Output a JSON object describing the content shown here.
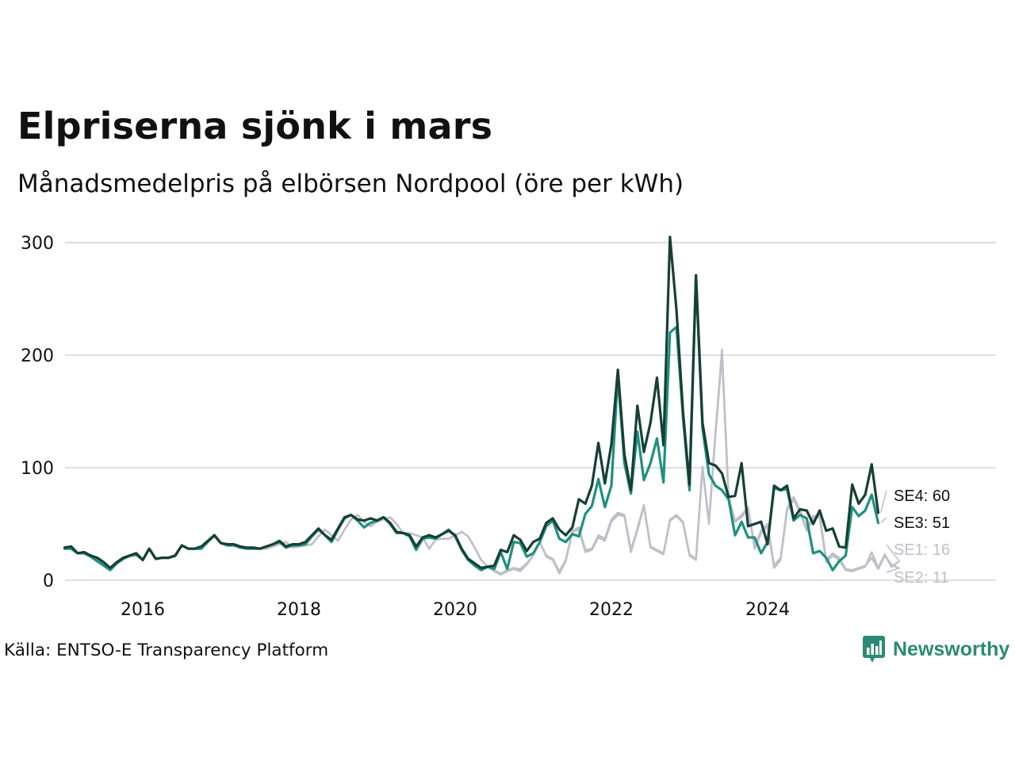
{
  "header": {
    "title": "Elpriserna sjönk i mars",
    "subtitle": "Månadsmedelpris på elbörsen Nordpool (öre per kWh)"
  },
  "footer": {
    "source": "Källa: ENTSO-E Transparency Platform",
    "brand": "Newsworthy",
    "brand_color": "#2a8a75",
    "brand_icon": "bar-chart-icon"
  },
  "chart_data": {
    "type": "line",
    "title": "Elpriserna sjönk i mars",
    "subtitle": "Månadsmedelpris på elbörsen Nordpool (öre per kWh)",
    "xlabel": "",
    "ylabel": "",
    "x_start": "2015-01",
    "x_step": "month",
    "xlim": [
      "2015-01",
      "2026-12"
    ],
    "ylim": [
      0,
      300
    ],
    "x_ticks": [
      "2016",
      "2018",
      "2020",
      "2022",
      "2024"
    ],
    "y_ticks": [
      "0",
      "100",
      "200",
      "300"
    ],
    "grid": "horizontal",
    "legend": "end-of-line labels",
    "series": [
      {
        "name": "SE1",
        "end_label": "SE1: 16",
        "color": "#c0bfc9",
        "values": [
          28,
          29,
          24,
          24,
          22,
          19,
          15,
          9,
          15,
          19,
          21,
          22,
          18,
          28,
          19,
          20,
          20,
          21,
          31,
          28,
          28,
          28,
          34,
          39,
          33,
          31,
          31,
          29,
          29,
          29,
          28,
          28,
          30,
          32,
          34,
          29,
          30,
          31,
          32,
          39,
          45,
          40,
          35,
          45,
          54,
          58,
          52,
          48,
          52,
          54,
          56,
          50,
          42,
          42,
          40,
          38,
          28,
          36,
          37,
          37,
          40,
          43,
          39,
          29,
          18,
          12,
          8,
          5,
          8,
          10,
          8,
          14,
          22,
          34,
          21,
          18,
          6,
          17,
          43,
          45,
          25,
          27,
          38,
          35,
          52,
          58,
          57,
          25,
          44,
          66,
          29,
          26,
          23,
          53,
          57,
          51,
          22,
          18,
          100,
          50,
          130,
          200,
          72,
          52,
          56,
          64,
          28,
          42,
          48,
          11,
          18,
          62,
          72,
          60,
          44,
          55,
          56,
          16,
          22,
          18,
          9,
          8,
          10,
          12,
          25,
          11,
          23,
          12,
          16
        ]
      },
      {
        "name": "SE2",
        "end_label": "SE2: 11",
        "color": "#c0bfc9",
        "values": [
          28,
          29,
          24,
          24,
          22,
          19,
          15,
          9,
          15,
          19,
          21,
          22,
          18,
          28,
          19,
          20,
          20,
          21,
          31,
          28,
          28,
          28,
          34,
          39,
          33,
          31,
          31,
          29,
          29,
          29,
          28,
          28,
          30,
          32,
          34,
          29,
          30,
          31,
          32,
          39,
          45,
          40,
          35,
          45,
          54,
          58,
          52,
          48,
          52,
          54,
          56,
          50,
          42,
          42,
          40,
          38,
          28,
          36,
          37,
          37,
          40,
          43,
          39,
          29,
          18,
          12,
          9,
          6,
          9,
          11,
          10,
          15,
          22,
          34,
          22,
          19,
          8,
          18,
          44,
          47,
          27,
          28,
          40,
          37,
          54,
          60,
          58,
          27,
          46,
          67,
          30,
          27,
          24,
          54,
          58,
          52,
          23,
          19,
          101,
          52,
          132,
          205,
          74,
          53,
          58,
          65,
          30,
          44,
          50,
          13,
          20,
          64,
          74,
          62,
          46,
          57,
          58,
          18,
          24,
          20,
          10,
          9,
          11,
          13,
          20,
          10,
          22,
          14,
          11
        ]
      },
      {
        "name": "SE3",
        "end_label": "SE3: 51",
        "color": "#1f9080",
        "values": [
          28,
          28,
          24,
          24,
          21,
          17,
          13,
          9,
          15,
          19,
          22,
          23,
          18,
          28,
          19,
          20,
          20,
          22,
          31,
          28,
          28,
          28,
          34,
          40,
          33,
          31,
          31,
          29,
          28,
          28,
          28,
          30,
          32,
          34,
          29,
          31,
          31,
          32,
          39,
          45,
          40,
          34,
          45,
          55,
          58,
          53,
          47,
          51,
          53,
          56,
          50,
          42,
          42,
          39,
          27,
          37,
          38,
          37,
          41,
          45,
          39,
          27,
          18,
          13,
          9,
          12,
          10,
          25,
          10,
          34,
          33,
          21,
          24,
          34,
          48,
          53,
          37,
          34,
          41,
          39,
          59,
          66,
          90,
          65,
          84,
          182,
          104,
          77,
          132,
          89,
          104,
          126,
          87,
          220,
          225,
          145,
          80,
          270,
          135,
          94,
          84,
          80,
          72,
          40,
          52,
          38,
          38,
          24,
          34,
          82,
          80,
          81,
          53,
          58,
          55,
          24,
          26,
          20,
          9,
          17,
          22,
          65,
          57,
          62,
          76,
          51
        ]
      },
      {
        "name": "SE4",
        "end_label": "SE4: 60",
        "color": "#173f35",
        "values": [
          29,
          30,
          24,
          25,
          22,
          20,
          16,
          11,
          16,
          20,
          22,
          24,
          18,
          28,
          19,
          20,
          20,
          22,
          31,
          28,
          28,
          30,
          35,
          40,
          33,
          32,
          32,
          30,
          29,
          29,
          28,
          30,
          32,
          35,
          30,
          32,
          32,
          34,
          40,
          46,
          40,
          36,
          46,
          56,
          58,
          54,
          53,
          55,
          53,
          56,
          51,
          43,
          42,
          40,
          30,
          38,
          40,
          38,
          41,
          44,
          40,
          28,
          19,
          15,
          11,
          12,
          13,
          27,
          25,
          40,
          36,
          26,
          34,
          37,
          51,
          55,
          45,
          40,
          47,
          72,
          68,
          84,
          122,
          86,
          121,
          187,
          112,
          80,
          155,
          114,
          140,
          180,
          120,
          305,
          240,
          150,
          85,
          271,
          140,
          104,
          102,
          95,
          74,
          75,
          104,
          48,
          50,
          52,
          32,
          84,
          80,
          84,
          55,
          63,
          62,
          50,
          62,
          44,
          46,
          30,
          29,
          85,
          68,
          76,
          103,
          60
        ]
      }
    ]
  }
}
